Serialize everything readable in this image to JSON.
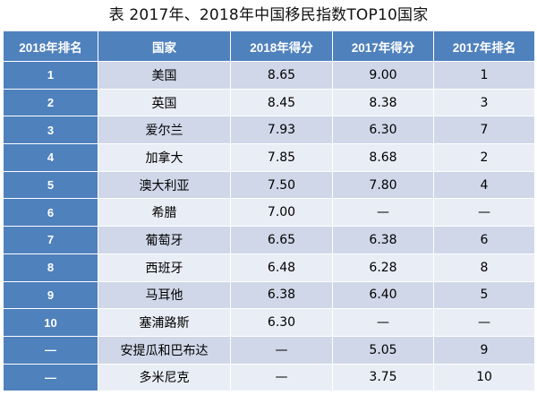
{
  "title": "表  2017年、2018年中国移民指数TOP10国家",
  "table": {
    "headers": [
      "2018年排名",
      "国家",
      "2018年得分",
      "2017年得分",
      "2017年排名"
    ],
    "rows": [
      [
        "1",
        "美国",
        "8.65",
        "9.00",
        "1"
      ],
      [
        "2",
        "英国",
        "8.45",
        "8.38",
        "3"
      ],
      [
        "3",
        "爱尔兰",
        "7.93",
        "6.30",
        "7"
      ],
      [
        "4",
        "加拿大",
        "7.85",
        "8.68",
        "2"
      ],
      [
        "5",
        "澳大利亚",
        "7.50",
        "7.80",
        "4"
      ],
      [
        "6",
        "希腊",
        "7.00",
        "—",
        "—"
      ],
      [
        "7",
        "葡萄牙",
        "6.65",
        "6.38",
        "6"
      ],
      [
        "8",
        "西班牙",
        "6.48",
        "6.28",
        "8"
      ],
      [
        "9",
        "马耳他",
        "6.38",
        "6.40",
        "5"
      ],
      [
        "10",
        "塞浦路斯",
        "6.30",
        "—",
        "—"
      ],
      [
        "—",
        "安提瓜和巴布达",
        "—",
        "5.05",
        "9"
      ],
      [
        "—",
        "多米尼克",
        "—",
        "3.75",
        "10"
      ]
    ]
  },
  "colors": {
    "header_bg": "#4f81bd",
    "row_odd_bg": "#cfd7e8",
    "row_even_bg": "#e9edf5"
  }
}
